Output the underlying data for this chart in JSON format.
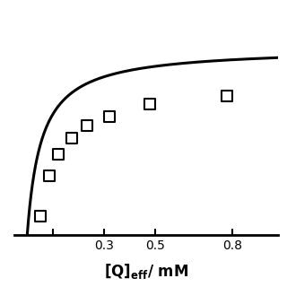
{
  "scatter_x": [
    0.05,
    0.085,
    0.12,
    0.175,
    0.235,
    0.32,
    0.48,
    0.78
  ],
  "scatter_y": [
    0.12,
    0.38,
    0.52,
    0.62,
    0.7,
    0.76,
    0.84,
    0.89
  ],
  "curve_A": 1.2,
  "curve_B": 0.055,
  "xlim": [
    -0.05,
    0.98
  ],
  "ylim": [
    0.0,
    1.45
  ],
  "xticks": [
    0.1,
    0.3,
    0.5,
    0.8
  ],
  "xticklabels": [
    "",
    "0.3",
    "0.5",
    "0.8"
  ],
  "xlabel": "[Q]$_{\\mathbf{eff}}$/ mM",
  "xlabel_fontsize": 12,
  "tick_fontsize": 12,
  "marker": "s",
  "marker_size": 8,
  "marker_color": "white",
  "marker_edgecolor": "black",
  "marker_edgewidth": 1.5,
  "line_color": "black",
  "line_width": 2.2,
  "background_color": "#ffffff",
  "fig_width": 3.2,
  "fig_height": 3.2,
  "dpi": 100
}
